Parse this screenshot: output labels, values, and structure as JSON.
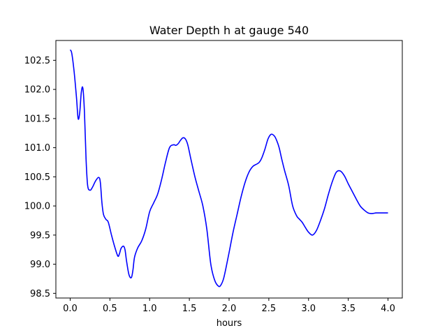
{
  "chart_data": {
    "type": "line",
    "title": "Water Depth h at gauge 540",
    "xlabel": "hours",
    "ylabel": "",
    "xlim": [
      -0.18,
      4.18
    ],
    "ylim": [
      98.42,
      102.84
    ],
    "xticks": [
      0.0,
      0.5,
      1.0,
      1.5,
      2.0,
      2.5,
      3.0,
      3.5,
      4.0
    ],
    "xtick_labels": [
      "0.0",
      "0.5",
      "1.0",
      "1.5",
      "2.0",
      "2.5",
      "3.0",
      "3.5",
      "4.0"
    ],
    "yticks": [
      98.5,
      99.0,
      99.5,
      100.0,
      100.5,
      101.0,
      101.5,
      102.0,
      102.5
    ],
    "ytick_labels": [
      "98.5",
      "99.0",
      "99.5",
      "100.0",
      "100.5",
      "101.0",
      "101.5",
      "102.0",
      "102.5"
    ],
    "grid": false,
    "series": [
      {
        "color": "#0000ff",
        "x": [
          0.0,
          0.02,
          0.05,
          0.08,
          0.1,
          0.12,
          0.14,
          0.16,
          0.18,
          0.2,
          0.22,
          0.25,
          0.28,
          0.32,
          0.36,
          0.38,
          0.4,
          0.42,
          0.45,
          0.48,
          0.52,
          0.56,
          0.6,
          0.62,
          0.64,
          0.67,
          0.69,
          0.71,
          0.74,
          0.77,
          0.79,
          0.81,
          0.85,
          0.9,
          0.95,
          1.0,
          1.05,
          1.1,
          1.15,
          1.2,
          1.25,
          1.3,
          1.33,
          1.36,
          1.39,
          1.42,
          1.45,
          1.48,
          1.52,
          1.57,
          1.62,
          1.67,
          1.72,
          1.77,
          1.82,
          1.87,
          1.9,
          1.93,
          1.96,
          2.0,
          2.05,
          2.1,
          2.15,
          2.2,
          2.25,
          2.3,
          2.35,
          2.38,
          2.41,
          2.45,
          2.49,
          2.53,
          2.57,
          2.6,
          2.63,
          2.66,
          2.7,
          2.75,
          2.8,
          2.85,
          2.88,
          2.92,
          2.96,
          3.0,
          3.05,
          3.1,
          3.15,
          3.2,
          3.25,
          3.3,
          3.35,
          3.4,
          3.45,
          3.5,
          3.55,
          3.6,
          3.65,
          3.7,
          3.75,
          3.8,
          3.85,
          3.9,
          3.95,
          4.0
        ],
        "y": [
          102.68,
          102.62,
          102.3,
          101.85,
          101.5,
          101.6,
          101.95,
          102.02,
          101.6,
          100.8,
          100.35,
          100.27,
          100.32,
          100.43,
          100.49,
          100.4,
          100.05,
          99.85,
          99.77,
          99.72,
          99.5,
          99.3,
          99.14,
          99.18,
          99.27,
          99.31,
          99.25,
          99.05,
          98.82,
          98.77,
          98.9,
          99.12,
          99.28,
          99.4,
          99.6,
          99.9,
          100.05,
          100.2,
          100.45,
          100.75,
          101.0,
          101.05,
          101.04,
          101.07,
          101.13,
          101.17,
          101.15,
          101.05,
          100.8,
          100.5,
          100.25,
          100.0,
          99.6,
          99.0,
          98.72,
          98.62,
          98.65,
          98.75,
          98.93,
          99.2,
          99.55,
          99.85,
          100.15,
          100.4,
          100.58,
          100.68,
          100.72,
          100.75,
          100.82,
          100.97,
          101.15,
          101.23,
          101.2,
          101.12,
          101.0,
          100.82,
          100.6,
          100.35,
          100.0,
          99.83,
          99.78,
          99.72,
          99.63,
          99.55,
          99.5,
          99.58,
          99.75,
          99.95,
          100.2,
          100.42,
          100.58,
          100.6,
          100.52,
          100.38,
          100.25,
          100.12,
          100.0,
          99.93,
          99.88,
          99.87,
          99.88,
          99.88,
          99.88,
          99.88
        ]
      }
    ]
  }
}
